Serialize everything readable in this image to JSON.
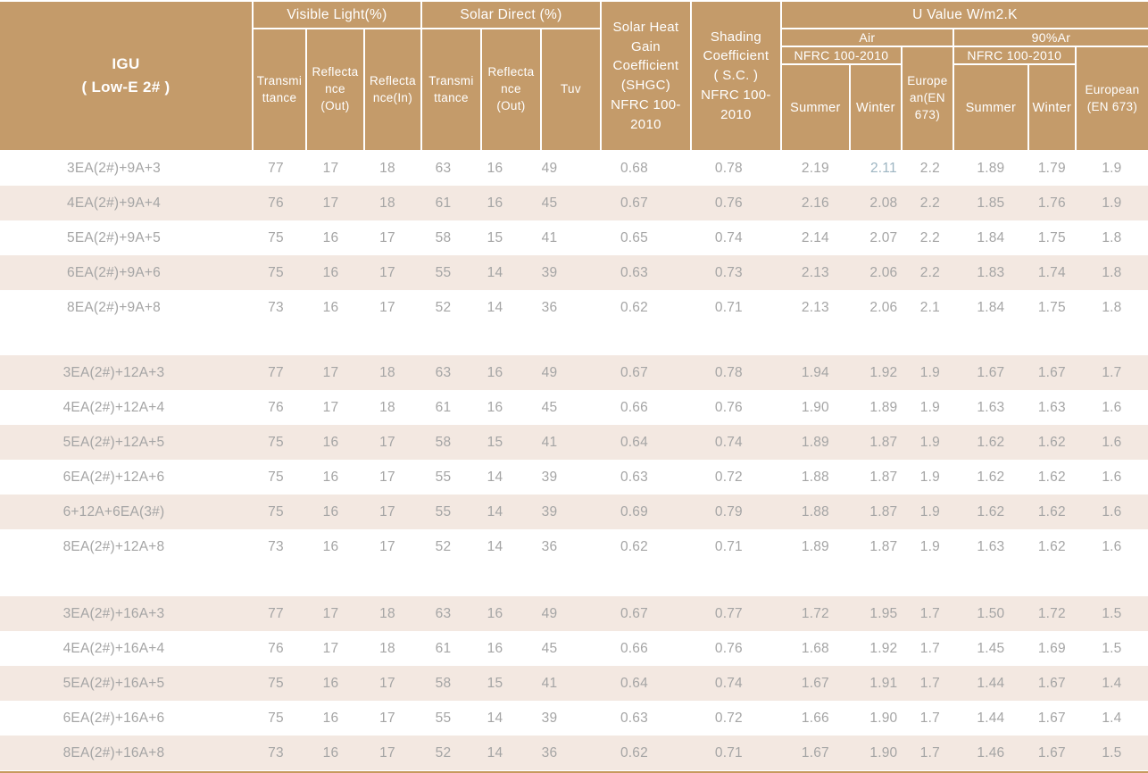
{
  "header": {
    "igu": "IGU\n( Low-E 2# )",
    "visible_light": "Visible Light(%)",
    "solar_direct": "Solar Direct (%)",
    "shgc": "Solar Heat\nGain\nCoefficient\n(SHGC)\nNFRC 100-\n2010",
    "shading": "Shading\nCoefficient\n( S.C. )\nNFRC 100-\n2010",
    "u_value": "U Value W/m2.K",
    "air": "Air",
    "argon_90": "90%Ar",
    "nfrc_air": "NFRC 100-2010",
    "nfrc_argon": "NFRC 100-2010",
    "sub": {
      "vl_transmittance": "Transmi\nttance",
      "vl_reflectance_out": "Reflecta\nnce\n(Out)",
      "vl_reflectance_in": "Reflecta\nnce(In)",
      "sd_transmittance": "Transmi\nttance",
      "sd_reflectance_out": "Reflecta\nnce\n(Out)",
      "tuv": "Tuv",
      "air_summer": "Summer",
      "air_winter": "Winter",
      "air_european": "Europe\nan(EN\n673)",
      "ar_summer": "Summer",
      "ar_winter": "Winter",
      "ar_european": "European\n(EN 673)"
    }
  },
  "colors": {
    "header_bg": "#c49b6a",
    "row_shaded_bg": "#f3e8e1",
    "row_white_bg": "#ffffff",
    "header_text": "#ffffff",
    "data_text": "#a5a5a5",
    "bottom_rule": "#c69a5e",
    "winter_air_cell_tint": "#9db5c2"
  },
  "groups": [
    {
      "rows": [
        {
          "label": "3EA(2#)+9A+3",
          "values": [
            "77",
            "17",
            "18",
            "63",
            "16",
            "49",
            "0.68",
            "0.78",
            "2.19",
            "2.11",
            "2.2",
            "1.89",
            "1.79",
            "1.9"
          ],
          "value_colors": {
            "9": "#9db5c2"
          }
        },
        {
          "label": "4EA(2#)+9A+4",
          "values": [
            "76",
            "17",
            "18",
            "61",
            "16",
            "45",
            "0.67",
            "0.76",
            "2.16",
            "2.08",
            "2.2",
            "1.85",
            "1.76",
            "1.9"
          ]
        },
        {
          "label": "5EA(2#)+9A+5",
          "values": [
            "75",
            "16",
            "17",
            "58",
            "15",
            "41",
            "0.65",
            "0.74",
            "2.14",
            "2.07",
            "2.2",
            "1.84",
            "1.75",
            "1.8"
          ]
        },
        {
          "label": "6EA(2#)+9A+6",
          "values": [
            "75",
            "16",
            "17",
            "55",
            "14",
            "39",
            "0.63",
            "0.73",
            "2.13",
            "2.06",
            "2.2",
            "1.83",
            "1.74",
            "1.8"
          ]
        },
        {
          "label": "8EA(2#)+9A+8",
          "values": [
            "73",
            "16",
            "17",
            "52",
            "14",
            "36",
            "0.62",
            "0.71",
            "2.13",
            "2.06",
            "2.1",
            "1.84",
            "1.75",
            "1.8"
          ]
        }
      ]
    },
    {
      "rows": [
        {
          "label": "3EA(2#)+12A+3",
          "values": [
            "77",
            "17",
            "18",
            "63",
            "16",
            "49",
            "0.67",
            "0.78",
            "1.94",
            "1.92",
            "1.9",
            "1.67",
            "1.67",
            "1.7"
          ]
        },
        {
          "label": "4EA(2#)+12A+4",
          "values": [
            "76",
            "17",
            "18",
            "61",
            "16",
            "45",
            "0.66",
            "0.76",
            "1.90",
            "1.89",
            "1.9",
            "1.63",
            "1.63",
            "1.6"
          ]
        },
        {
          "label": "5EA(2#)+12A+5",
          "values": [
            "75",
            "16",
            "17",
            "58",
            "15",
            "41",
            "0.64",
            "0.74",
            "1.89",
            "1.87",
            "1.9",
            "1.62",
            "1.62",
            "1.6"
          ]
        },
        {
          "label": "6EA(2#)+12A+6",
          "values": [
            "75",
            "16",
            "17",
            "55",
            "14",
            "39",
            "0.63",
            "0.72",
            "1.88",
            "1.87",
            "1.9",
            "1.62",
            "1.62",
            "1.6"
          ]
        },
        {
          "label": "6+12A+6EA(3#)",
          "values": [
            "75",
            "16",
            "17",
            "55",
            "14",
            "39",
            "0.69",
            "0.79",
            "1.88",
            "1.87",
            "1.9",
            "1.62",
            "1.62",
            "1.6"
          ]
        },
        {
          "label": "8EA(2#)+12A+8",
          "values": [
            "73",
            "16",
            "17",
            "52",
            "14",
            "36",
            "0.62",
            "0.71",
            "1.89",
            "1.87",
            "1.9",
            "1.63",
            "1.62",
            "1.6"
          ]
        }
      ]
    },
    {
      "rows": [
        {
          "label": "3EA(2#)+16A+3",
          "values": [
            "77",
            "17",
            "18",
            "63",
            "16",
            "49",
            "0.67",
            "0.77",
            "1.72",
            "1.95",
            "1.7",
            "1.50",
            "1.72",
            "1.5"
          ]
        },
        {
          "label": "4EA(2#)+16A+4",
          "values": [
            "76",
            "17",
            "18",
            "61",
            "16",
            "45",
            "0.66",
            "0.76",
            "1.68",
            "1.92",
            "1.7",
            "1.45",
            "1.69",
            "1.5"
          ]
        },
        {
          "label": "5EA(2#)+16A+5",
          "values": [
            "75",
            "16",
            "17",
            "58",
            "15",
            "41",
            "0.64",
            "0.74",
            "1.67",
            "1.91",
            "1.7",
            "1.44",
            "1.67",
            "1.4"
          ]
        },
        {
          "label": "6EA(2#)+16A+6",
          "values": [
            "75",
            "16",
            "17",
            "55",
            "14",
            "39",
            "0.63",
            "0.72",
            "1.66",
            "1.90",
            "1.7",
            "1.44",
            "1.67",
            "1.4"
          ]
        },
        {
          "label": "8EA(2#)+16A+8",
          "values": [
            "73",
            "16",
            "17",
            "52",
            "14",
            "36",
            "0.62",
            "0.71",
            "1.67",
            "1.90",
            "1.7",
            "1.46",
            "1.67",
            "1.5"
          ]
        }
      ]
    }
  ]
}
